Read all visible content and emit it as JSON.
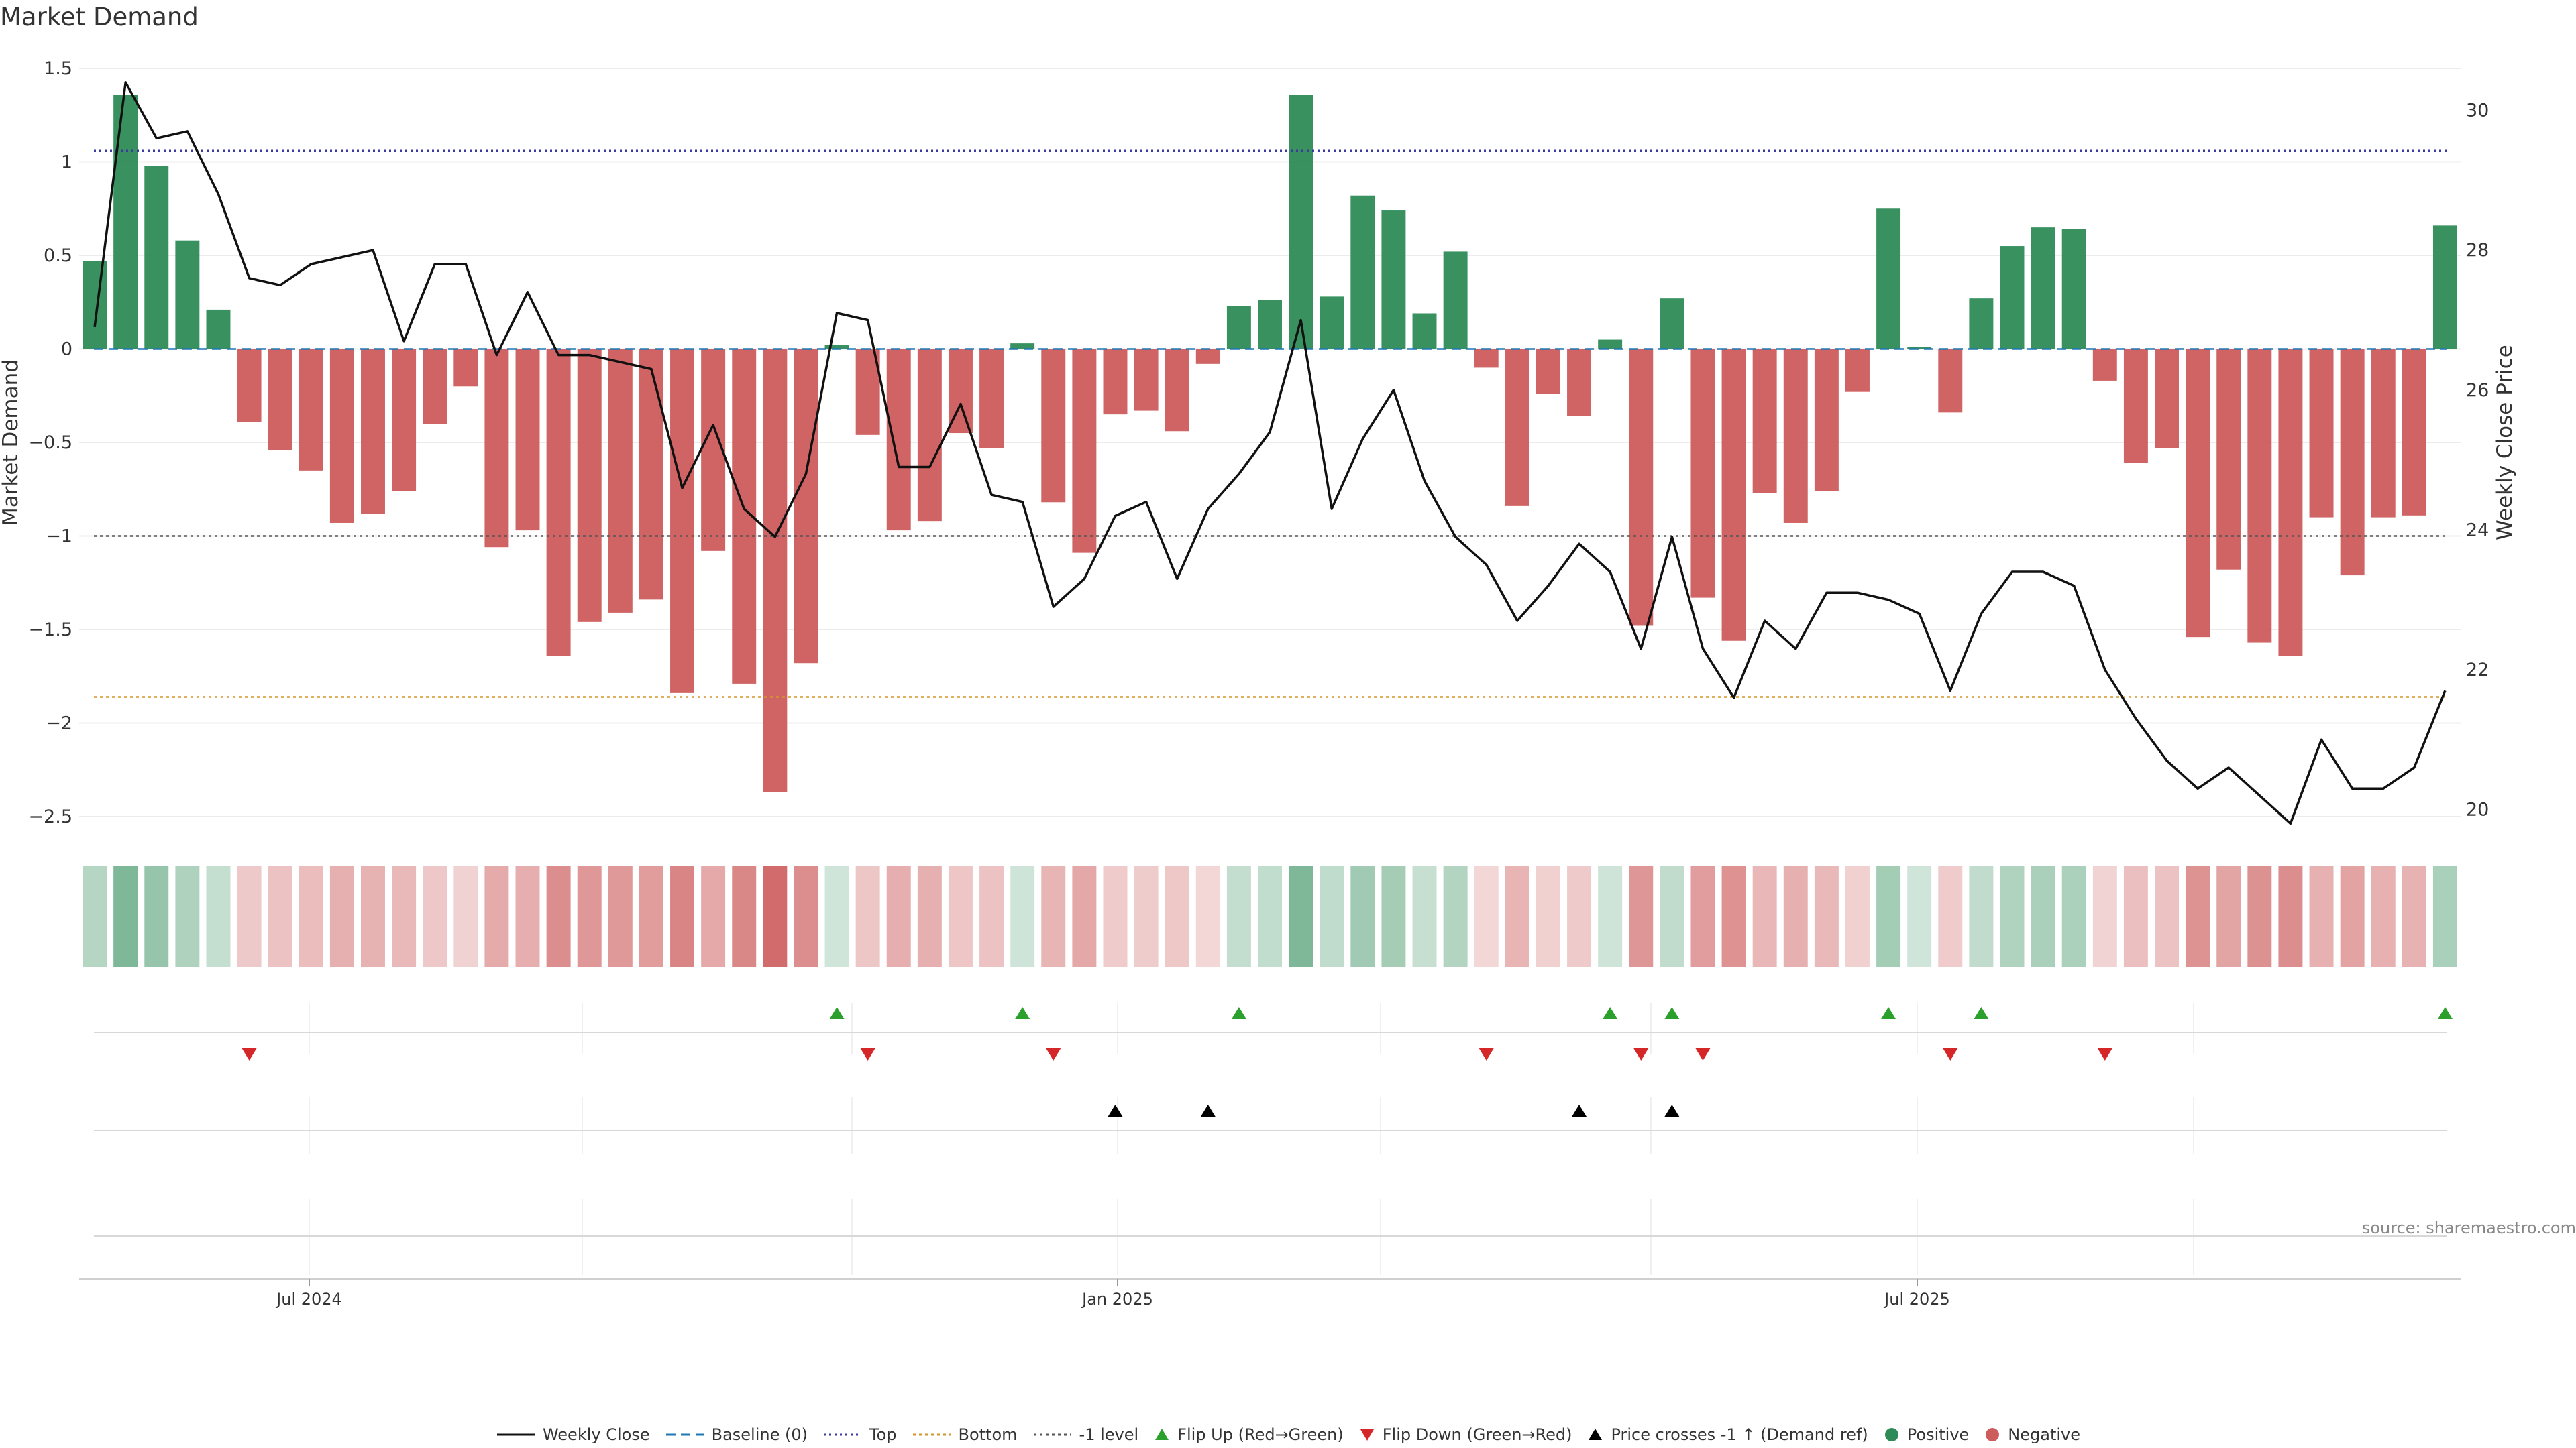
{
  "title": "Market Demand",
  "source": "source: sharemaestro.com",
  "colors": {
    "positive": "#2e8b57",
    "negative": "#cd5c5c",
    "line": "#111111",
    "top": "#3a3aa0",
    "bottom": "#d4952a",
    "minus_one": "#555555",
    "baseline": "#1f77b4",
    "flip_up": "#2ca02c",
    "flip_down": "#d62728",
    "cross": "#000000"
  },
  "legend": [
    {
      "key": "line",
      "label": "Weekly Close"
    },
    {
      "key": "baseline",
      "label": "Baseline (0)"
    },
    {
      "key": "top",
      "label": "Top"
    },
    {
      "key": "bottom",
      "label": "Bottom"
    },
    {
      "key": "minus_one",
      "label": "-1 level"
    },
    {
      "key": "flip_up",
      "label": "Flip Up (Red→Green)"
    },
    {
      "key": "flip_down",
      "label": "Flip Down (Green→Red)"
    },
    {
      "key": "cross",
      "label": "Price crosses -1 ↑ (Demand ref)"
    },
    {
      "key": "positive",
      "label": "Positive"
    },
    {
      "key": "negative",
      "label": "Negative"
    }
  ],
  "chart_data": {
    "type": "bar",
    "title": "Market Demand",
    "ylabel": "Market Demand",
    "y2label": "Weekly Close Price",
    "ylim": [
      -2.5,
      1.5
    ],
    "y2lim": [
      19.9,
      30.6
    ],
    "yticks": [
      "1.5",
      "1",
      "0.5",
      "0",
      "−0.5",
      "−1",
      "−1.5",
      "−2",
      "−2.5"
    ],
    "y2ticks": [
      "30",
      "28",
      "26",
      "24",
      "22",
      "20"
    ],
    "xticks": [
      "Jul 2024",
      "Jan 2025",
      "Jul 2025"
    ],
    "week_count": 77,
    "top_level": 1.06,
    "bottom_level": -1.86,
    "minus_one_level": -1,
    "demand": [
      0.47,
      1.36,
      0.98,
      0.58,
      0.21,
      -0.39,
      -0.54,
      -0.65,
      -0.93,
      -0.88,
      -0.76,
      -0.4,
      -0.2,
      -1.06,
      -0.97,
      -1.64,
      -1.46,
      -1.41,
      -1.34,
      -1.84,
      -1.08,
      -1.79,
      -2.37,
      -1.68,
      0.02,
      -0.46,
      -0.97,
      -0.92,
      -0.45,
      -0.53,
      0.03,
      -0.82,
      -1.09,
      -0.35,
      -0.33,
      -0.44,
      -0.08,
      0.23,
      0.26,
      1.36,
      0.28,
      0.82,
      0.74,
      0.19,
      0.52,
      -0.1,
      -0.84,
      -0.24,
      -0.36,
      0.05,
      -1.48,
      0.27,
      -1.33,
      -1.56,
      -0.77,
      -0.93,
      -0.76,
      -0.23,
      0.75,
      0.01,
      -0.34,
      0.27,
      0.55,
      0.65,
      0.64,
      -0.17,
      -0.61,
      -0.53,
      -1.54,
      -1.18,
      -1.57,
      -1.64,
      -0.9,
      -1.21,
      -0.9,
      -0.89,
      0.66
    ],
    "weekly_close": [
      26.9,
      30.4,
      29.6,
      29.7,
      28.8,
      27.6,
      27.5,
      27.8,
      27.9,
      28.0,
      26.7,
      27.8,
      27.8,
      26.5,
      27.4,
      26.5,
      26.5,
      26.4,
      26.3,
      24.6,
      25.5,
      24.3,
      23.9,
      24.8,
      27.1,
      27.0,
      24.9,
      24.9,
      25.8,
      24.5,
      24.4,
      22.9,
      23.3,
      24.2,
      24.4,
      23.3,
      24.3,
      24.8,
      25.4,
      27.0,
      24.3,
      25.3,
      26.0,
      24.7,
      23.9,
      23.5,
      22.7,
      23.2,
      23.8,
      23.4,
      22.3,
      23.9,
      22.3,
      21.6,
      22.7,
      22.3,
      23.1,
      23.1,
      23.0,
      22.8,
      21.7,
      22.8,
      23.4,
      23.4,
      23.2,
      22.0,
      21.3,
      20.7,
      20.3,
      20.6,
      20.2,
      19.8,
      21.0,
      20.3,
      20.3,
      20.6,
      21.7
    ],
    "flip_up_weeks": [
      24,
      30,
      37,
      49,
      51,
      58,
      61,
      76
    ],
    "flip_down_weeks": [
      5,
      25,
      31,
      45,
      50,
      52,
      60,
      65
    ],
    "cross_weeks": [
      33,
      36,
      48,
      51
    ]
  }
}
